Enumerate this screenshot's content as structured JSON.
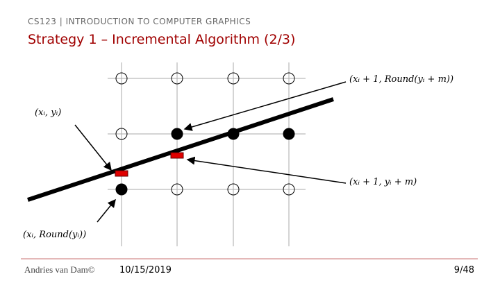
{
  "header": {
    "course": "CS123 | INTRODUCTION TO COMPUTER GRAPHICS",
    "title": "Strategy 1 – Incremental Algorithm (2/3)"
  },
  "diagram": {
    "labels": [
      "(xᵢ + 1, Round(yᵢ + m))",
      "(xᵢ, yᵢ)",
      "(xᵢ + 1, yᵢ + m)",
      "(xᵢ, Round(yᵢ))"
    ]
  },
  "footer": {
    "author": "Andries van Dam©",
    "date": "10/15/2019",
    "page": "9/48"
  }
}
